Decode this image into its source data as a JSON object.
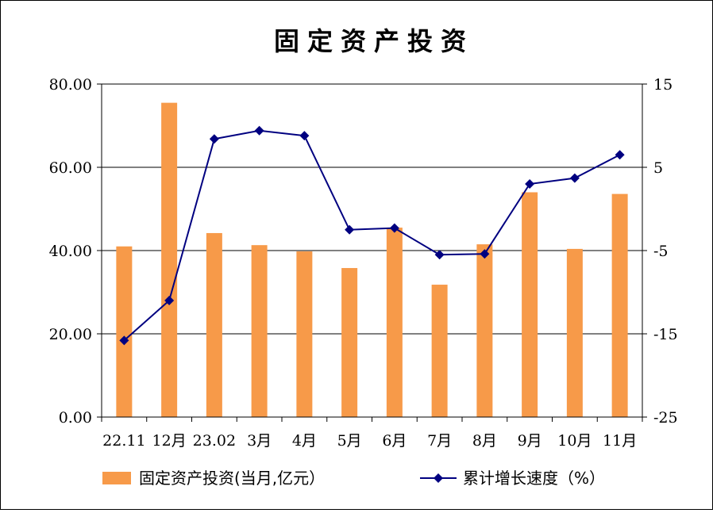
{
  "chart_data": {
    "type": "bar+line",
    "title": "固定资产投资",
    "categories": [
      "22.11",
      "12月",
      "23.02",
      "3月",
      "4月",
      "5月",
      "6月",
      "7月",
      "8月",
      "9月",
      "10月",
      "11月"
    ],
    "series": [
      {
        "name": "固定资产投资(当月,亿元）",
        "type": "bar",
        "axis": "left",
        "color": "#f79a49",
        "values": [
          41.0,
          75.5,
          44.2,
          41.3,
          39.8,
          35.8,
          45.5,
          31.8,
          41.5,
          54.0,
          40.4,
          53.6
        ]
      },
      {
        "name": "累计增长速度（%）",
        "type": "line",
        "axis": "right",
        "color": "#000080",
        "values": [
          -15.8,
          -11.0,
          8.4,
          9.4,
          8.8,
          -2.5,
          -2.3,
          -5.5,
          -5.4,
          3.0,
          3.7,
          6.5
        ]
      }
    ],
    "y_left": {
      "min": 0,
      "max": 80,
      "ticks": [
        0,
        20,
        40,
        60,
        80
      ],
      "tick_labels": [
        "0.00",
        "20.00",
        "40.00",
        "60.00",
        "80.00"
      ]
    },
    "y_right": {
      "min": -25,
      "max": 15,
      "ticks": [
        -25,
        -15,
        -5,
        5,
        15
      ],
      "tick_labels": [
        "-25",
        "-15",
        "-5",
        "5",
        "15"
      ]
    },
    "grid": true,
    "legend_position": "bottom"
  }
}
